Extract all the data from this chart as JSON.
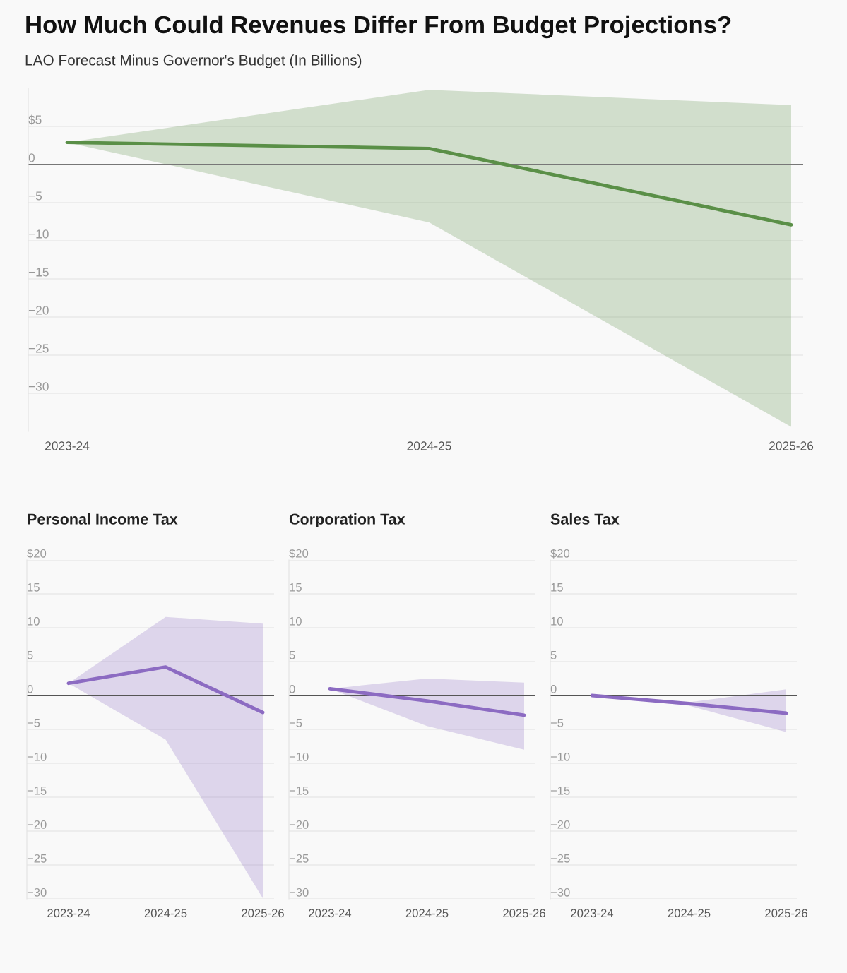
{
  "chart_data": [
    {
      "type": "line",
      "title": "How Much Could Revenues Differ From Budget Projections?",
      "subtitle": "LAO Forecast Minus Governor's Budget (In Billions)",
      "categories": [
        "2023-24",
        "2024-25",
        "2025-26"
      ],
      "series": [
        {
          "color": "#5a8f47",
          "values": [
            2.9,
            2.1,
            -7.9
          ],
          "lower": [
            2.9,
            -7.6,
            -34.4
          ],
          "upper": [
            2.9,
            9.8,
            7.8
          ]
        }
      ],
      "ylim": [
        -35,
        10
      ],
      "yticks": [
        {
          "value": 5,
          "label": "$5"
        },
        0,
        {
          "value": -5,
          "label": "−5"
        },
        {
          "value": -10,
          "label": "−10"
        },
        {
          "value": -15,
          "label": "−15"
        },
        {
          "value": -20,
          "label": "−20"
        },
        {
          "value": -25,
          "label": "−25"
        },
        {
          "value": -30,
          "label": "−30"
        }
      ],
      "grid": "y",
      "ref_lines": [
        {
          "axis": "y",
          "value": 0,
          "color": "#777777"
        }
      ]
    },
    {
      "type": "line",
      "title": "Personal Income Tax",
      "categories": [
        "2023-24",
        "2024-25",
        "2025-26"
      ],
      "series": [
        {
          "color": "#8c6bc2",
          "values": [
            1.8,
            4.2,
            -2.5
          ],
          "lower": [
            1.8,
            -6.5,
            -29.9
          ],
          "upper": [
            1.8,
            11.6,
            10.6
          ]
        }
      ],
      "ylim": [
        -30,
        20
      ],
      "yticks": [
        {
          "value": 20,
          "label": "$20"
        },
        15,
        10,
        5,
        0,
        {
          "value": -5,
          "label": "−5"
        },
        {
          "value": -10,
          "label": "−10"
        },
        {
          "value": -15,
          "label": "−15"
        },
        {
          "value": -20,
          "label": "−20"
        },
        {
          "value": -25,
          "label": "−25"
        },
        {
          "value": -30,
          "label": "−30"
        }
      ],
      "grid": "y",
      "ref_lines": [
        {
          "axis": "y",
          "value": 0,
          "color": "#555555"
        }
      ]
    },
    {
      "type": "line",
      "title": "Corporation Tax",
      "categories": [
        "2023-24",
        "2024-25",
        "2025-26"
      ],
      "series": [
        {
          "color": "#8c6bc2",
          "values": [
            1.0,
            -0.8,
            -2.9
          ],
          "lower": [
            1.0,
            -4.5,
            -8.0
          ],
          "upper": [
            1.0,
            2.5,
            1.9
          ]
        }
      ],
      "ylim": [
        -30,
        20
      ],
      "yticks": [
        {
          "value": 20,
          "label": "$20"
        },
        15,
        10,
        5,
        0,
        {
          "value": -5,
          "label": "−5"
        },
        {
          "value": -10,
          "label": "−10"
        },
        {
          "value": -15,
          "label": "−15"
        },
        {
          "value": -20,
          "label": "−20"
        },
        {
          "value": -25,
          "label": "−25"
        },
        {
          "value": -30,
          "label": "−30"
        }
      ],
      "grid": "y",
      "ref_lines": [
        {
          "axis": "y",
          "value": 0,
          "color": "#555555"
        }
      ]
    },
    {
      "type": "line",
      "title": "Sales Tax",
      "categories": [
        "2023-24",
        "2024-25",
        "2025-26"
      ],
      "series": [
        {
          "color": "#8c6bc2",
          "values": [
            0.0,
            -1.2,
            -2.6
          ],
          "lower": [
            0.0,
            -1.5,
            -5.4
          ],
          "upper": [
            0.0,
            -1.0,
            0.9
          ]
        }
      ],
      "ylim": [
        -30,
        20
      ],
      "yticks": [
        {
          "value": 20,
          "label": "$20"
        },
        15,
        10,
        5,
        0,
        {
          "value": -5,
          "label": "−5"
        },
        {
          "value": -10,
          "label": "−10"
        },
        {
          "value": -15,
          "label": "−15"
        },
        {
          "value": -20,
          "label": "−20"
        },
        {
          "value": -25,
          "label": "−25"
        },
        {
          "value": -30,
          "label": "−30"
        }
      ],
      "grid": "y",
      "ref_lines": [
        {
          "axis": "y",
          "value": 0,
          "color": "#555555"
        }
      ]
    }
  ]
}
